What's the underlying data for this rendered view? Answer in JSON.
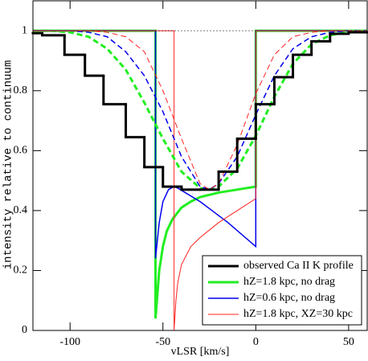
{
  "chart_data": {
    "type": "line",
    "xlabel": "vLSR [km/s]",
    "ylabel": "intensity relative to continuum",
    "xlim": [
      -120,
      60
    ],
    "ylim": [
      0,
      1.1
    ],
    "xticks": [
      -100,
      -50,
      0,
      50
    ],
    "yticks": [
      0,
      0.2,
      0.4,
      0.6,
      0.8,
      1
    ],
    "legend": "lower right",
    "step_series": {
      "name": "observed Ca II K profile",
      "color": "#000000",
      "bins": [
        -120,
        -115,
        -103,
        -92,
        -82,
        -70,
        -60,
        -50,
        -40,
        -30,
        -20,
        -10,
        0,
        10,
        20,
        30,
        40,
        50,
        60
      ],
      "values": [
        0.992,
        0.985,
        0.92,
        0.85,
        0.755,
        0.645,
        0.545,
        0.48,
        0.47,
        0.47,
        0.53,
        0.64,
        0.755,
        0.845,
        0.92,
        0.965,
        0.99,
        0.995
      ]
    },
    "series": [
      {
        "name": "hZ=1.8 kpc, no drag",
        "color": "#22ee22",
        "style": "solid",
        "width": 3,
        "x": [
          -120,
          -54,
          -54,
          -53,
          -52,
          -50,
          -48,
          -45,
          -40,
          -35,
          -30,
          -20,
          -10,
          0,
          0,
          60
        ],
        "values": [
          1,
          1,
          0.04,
          0.12,
          0.2,
          0.28,
          0.33,
          0.37,
          0.41,
          0.43,
          0.445,
          0.46,
          0.47,
          0.48,
          1,
          1
        ]
      },
      {
        "name": "hZ=0.6 kpc, no drag",
        "color": "#0000ee",
        "style": "solid",
        "width": 1.5,
        "x": [
          -120,
          -54,
          -54,
          -52,
          -50,
          -47,
          -44,
          -42,
          -30,
          -15,
          0,
          0,
          60
        ],
        "values": [
          1,
          1,
          0.24,
          0.36,
          0.43,
          0.47,
          0.48,
          0.475,
          0.43,
          0.36,
          0.28,
          1,
          1
        ]
      },
      {
        "name": "hZ=1.8 kpc, XZ=30 kpc",
        "color": "#ff2222",
        "style": "solid",
        "width": 1,
        "x": [
          -120,
          -44,
          -44,
          -43,
          -42,
          -40,
          -35,
          -30,
          -20,
          -10,
          0,
          0,
          60
        ],
        "values": [
          1,
          1,
          0,
          0.1,
          0.16,
          0.22,
          0.28,
          0.31,
          0.36,
          0.4,
          0.44,
          1,
          1
        ]
      },
      {
        "color": "#22ee22",
        "style": "dashed",
        "width": 3,
        "x": [
          -120,
          -110,
          -100,
          -90,
          -80,
          -70,
          -60,
          -50,
          -40,
          -30,
          -25,
          -20,
          -10,
          0,
          10,
          20,
          30,
          40,
          50,
          60
        ],
        "values": [
          1,
          1,
          0.995,
          0.98,
          0.94,
          0.87,
          0.76,
          0.64,
          0.53,
          0.475,
          0.47,
          0.48,
          0.54,
          0.65,
          0.78,
          0.89,
          0.955,
          0.985,
          0.997,
          1
        ]
      },
      {
        "color": "#0000ee",
        "style": "dashed",
        "width": 1.5,
        "x": [
          -120,
          -110,
          -100,
          -90,
          -80,
          -70,
          -60,
          -50,
          -40,
          -30,
          -25,
          -20,
          -10,
          0,
          10,
          20,
          30,
          40,
          50,
          60
        ],
        "values": [
          1,
          1,
          1,
          0.995,
          0.98,
          0.93,
          0.85,
          0.73,
          0.58,
          0.48,
          0.47,
          0.49,
          0.58,
          0.72,
          0.85,
          0.94,
          0.98,
          0.995,
          1,
          1
        ]
      },
      {
        "color": "#ff2222",
        "style": "dashed",
        "width": 1,
        "x": [
          -120,
          -110,
          -100,
          -90,
          -80,
          -70,
          -60,
          -50,
          -40,
          -30,
          -25,
          -20,
          -10,
          0,
          10,
          20,
          30,
          40,
          50,
          60
        ],
        "values": [
          1,
          1,
          1,
          1,
          0.995,
          0.98,
          0.93,
          0.8,
          0.64,
          0.49,
          0.47,
          0.49,
          0.62,
          0.79,
          0.92,
          0.98,
          0.995,
          1,
          1,
          1
        ]
      },
      {
        "color": "#000000",
        "style": "dotted",
        "width": 1,
        "x": [
          -54,
          0
        ],
        "values": [
          1,
          1
        ]
      }
    ]
  }
}
